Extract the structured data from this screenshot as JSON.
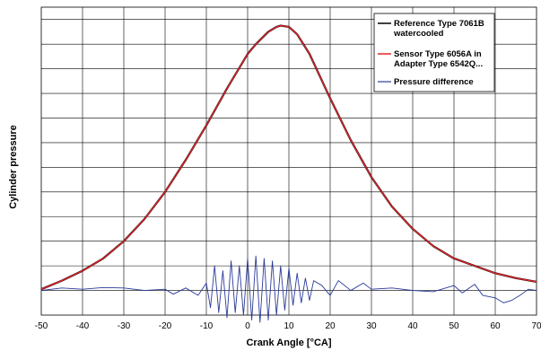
{
  "chart_data": {
    "type": "line",
    "title": "",
    "xlabel": "Crank Angle [°CA]",
    "ylabel": "Cylinder pressure",
    "xlim": [
      -50,
      70
    ],
    "x_ticks": [
      "-50",
      "-40",
      "-30",
      "-20",
      "-10",
      "0",
      "10",
      "20",
      "30",
      "40",
      "50",
      "60",
      "70"
    ],
    "y_unit": "relative (no tick labels shown)",
    "ylim": [
      -0.1,
      1.15
    ],
    "grid": true,
    "legend_position": "top-right",
    "legend": [
      {
        "lines": [
          "Reference Type 7061B",
          "watercooled"
        ],
        "color": "#000000"
      },
      {
        "lines": [
          "Sensor Type 6056A in",
          "Adapter Type 6542Q..."
        ],
        "color": "#e3262b"
      },
      {
        "lines": [
          "Pressure difference"
        ],
        "color": "#2b3a9a"
      }
    ],
    "series": [
      {
        "name": "Reference Type 7061B watercooled",
        "color": "#000000",
        "x": [
          -50,
          -45,
          -40,
          -35,
          -30,
          -25,
          -20,
          -15,
          -10,
          -5,
          0,
          2,
          5,
          7,
          8,
          10,
          12,
          15,
          20,
          25,
          30,
          35,
          40,
          45,
          50,
          55,
          60,
          65,
          70
        ],
        "y": [
          0.005,
          0.04,
          0.08,
          0.13,
          0.2,
          0.29,
          0.4,
          0.53,
          0.67,
          0.82,
          0.96,
          1.0,
          1.05,
          1.07,
          1.075,
          1.07,
          1.04,
          0.96,
          0.78,
          0.61,
          0.46,
          0.34,
          0.25,
          0.18,
          0.13,
          0.1,
          0.07,
          0.05,
          0.035
        ]
      },
      {
        "name": "Sensor Type 6056A in Adapter Type 6542Q...",
        "color": "#e3262b",
        "x": [
          -50,
          -45,
          -40,
          -35,
          -30,
          -25,
          -20,
          -15,
          -10,
          -5,
          0,
          2,
          5,
          7,
          8,
          10,
          12,
          15,
          20,
          25,
          30,
          35,
          40,
          45,
          50,
          55,
          60,
          65,
          70
        ],
        "y": [
          0.005,
          0.04,
          0.08,
          0.13,
          0.2,
          0.29,
          0.4,
          0.53,
          0.67,
          0.82,
          0.96,
          1.0,
          1.05,
          1.07,
          1.075,
          1.07,
          1.04,
          0.96,
          0.78,
          0.61,
          0.46,
          0.34,
          0.25,
          0.18,
          0.13,
          0.1,
          0.07,
          0.05,
          0.035
        ]
      },
      {
        "name": "Pressure difference",
        "color": "#2b3a9a",
        "x": [
          -50,
          -45,
          -40,
          -35,
          -30,
          -25,
          -20,
          -18,
          -15,
          -12,
          -10,
          -9,
          -8,
          -7,
          -6,
          -5,
          -4,
          -3,
          -2,
          -1,
          0,
          1,
          2,
          3,
          4,
          5,
          6,
          7,
          8,
          9,
          10,
          11,
          12,
          13,
          14,
          15,
          16,
          18,
          20,
          22,
          25,
          28,
          30,
          35,
          40,
          45,
          50,
          52,
          55,
          57,
          60,
          62,
          64,
          66,
          68,
          70
        ],
        "y": [
          0.0,
          0.01,
          0.005,
          0.012,
          0.01,
          0.0,
          0.005,
          -0.015,
          0.01,
          -0.02,
          0.03,
          -0.07,
          0.1,
          -0.09,
          0.08,
          -0.11,
          0.12,
          -0.09,
          0.1,
          -0.1,
          0.13,
          -0.12,
          0.14,
          -0.13,
          0.13,
          -0.12,
          0.12,
          -0.1,
          0.1,
          -0.08,
          0.09,
          -0.06,
          0.07,
          -0.05,
          0.05,
          -0.04,
          0.04,
          0.02,
          -0.02,
          0.04,
          0.0,
          0.03,
          0.005,
          0.01,
          0.0,
          -0.005,
          0.02,
          -0.01,
          0.025,
          -0.02,
          -0.03,
          -0.05,
          -0.04,
          -0.02,
          0.005,
          0.0
        ]
      }
    ]
  }
}
